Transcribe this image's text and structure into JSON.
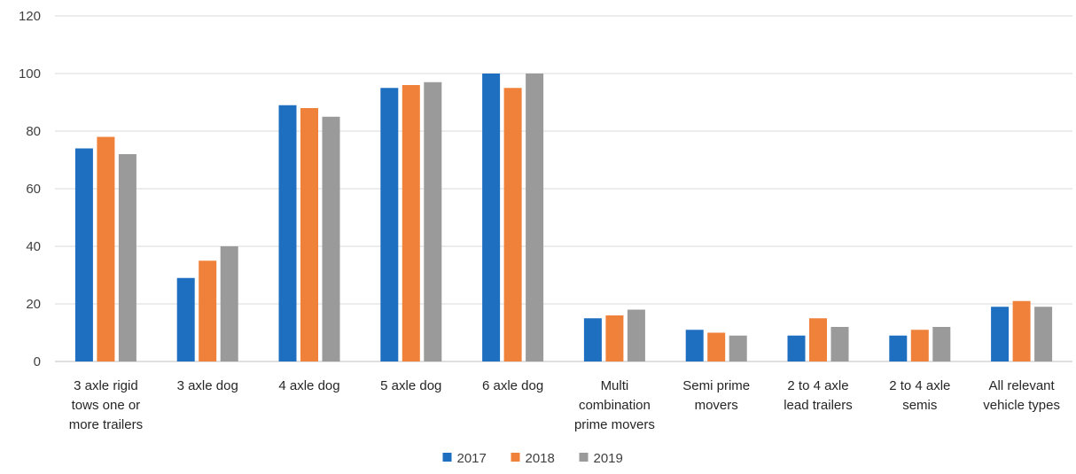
{
  "chart_data": {
    "type": "bar",
    "categories": [
      [
        "3 axle rigid",
        "tows one or",
        "more trailers"
      ],
      [
        "3 axle dog"
      ],
      [
        "4 axle dog"
      ],
      [
        "5 axle dog"
      ],
      [
        "6 axle dog"
      ],
      [
        "Multi",
        "combination",
        "prime movers"
      ],
      [
        "Semi prime",
        "movers"
      ],
      [
        "2 to 4 axle",
        "lead trailers"
      ],
      [
        "2 to 4 axle",
        "semis"
      ],
      [
        "All relevant",
        "vehicle types"
      ]
    ],
    "series": [
      {
        "name": "2017",
        "color": "#1f6fc0",
        "values": [
          74,
          29,
          89,
          95,
          100,
          15,
          11,
          9,
          9,
          19
        ]
      },
      {
        "name": "2018",
        "color": "#f0813a",
        "values": [
          78,
          35,
          88,
          96,
          95,
          16,
          10,
          15,
          11,
          21
        ]
      },
      {
        "name": "2019",
        "color": "#9a9a9a",
        "values": [
          72,
          40,
          85,
          97,
          100,
          18,
          9,
          12,
          12,
          19
        ]
      }
    ],
    "ylim": [
      0,
      120
    ],
    "yticks": [
      0,
      20,
      40,
      60,
      80,
      100,
      120
    ],
    "grid": true,
    "legend_position": "bottom-center",
    "title": "",
    "xlabel": "",
    "ylabel": ""
  }
}
